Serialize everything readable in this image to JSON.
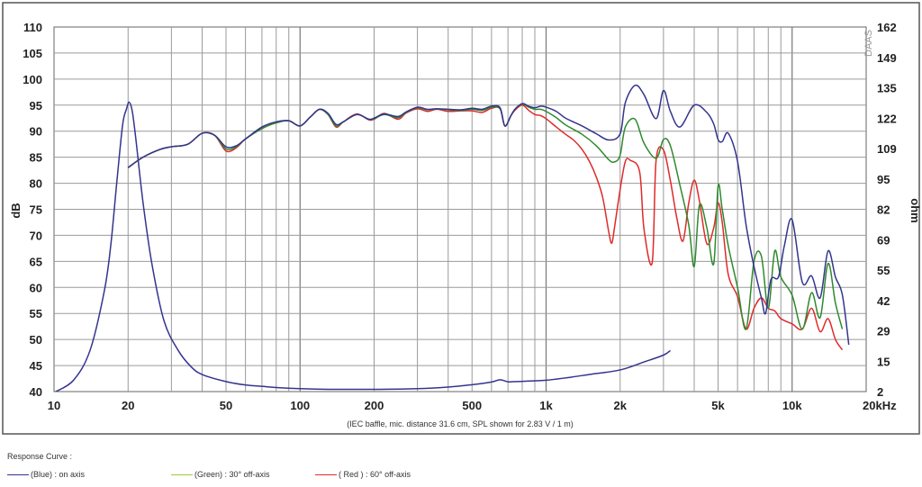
{
  "chart_data": {
    "type": "line",
    "title": "",
    "ylabel": "dB",
    "y2label": "ohm",
    "xlabel": "",
    "note": "(IEC baffle, mic. distance 31.6 cm, SPL shown for 2.83 V / 1 m)",
    "watermark": "DAAS",
    "x_scale": "log",
    "xlim": [
      10,
      20000
    ],
    "ylim": [
      40,
      110
    ],
    "y2_ticks": [
      "2",
      "15",
      "29",
      "42",
      "55",
      "69",
      "82",
      "95",
      "109",
      "122",
      "135",
      "149",
      "162"
    ],
    "y_ticks": [
      "40",
      "45",
      "50",
      "55",
      "60",
      "65",
      "70",
      "75",
      "80",
      "85",
      "90",
      "95",
      "100",
      "105",
      "110"
    ],
    "x_tick_labels": [
      {
        "value": 10,
        "label": "10"
      },
      {
        "value": 20,
        "label": "20"
      },
      {
        "value": 50,
        "label": "50"
      },
      {
        "value": 100,
        "label": "100"
      },
      {
        "value": 200,
        "label": "200"
      },
      {
        "value": 500,
        "label": "500"
      },
      {
        "value": 1000,
        "label": "1k"
      },
      {
        "value": 2000,
        "label": "2k"
      },
      {
        "value": 5000,
        "label": "5k"
      },
      {
        "value": 10000,
        "label": "10k"
      },
      {
        "value": 20000,
        "label": "20kHz"
      }
    ],
    "grid": true,
    "legend_position": "bottom",
    "series": [
      {
        "name": "on axis",
        "color": "#34348f",
        "x": [
          20,
          23,
          27,
          30,
          35,
          40,
          45,
          50,
          55,
          60,
          70,
          80,
          90,
          100,
          110,
          120,
          130,
          140,
          150,
          170,
          190,
          200,
          220,
          250,
          270,
          300,
          330,
          360,
          400,
          450,
          500,
          550,
          600,
          650,
          680,
          720,
          750,
          800,
          850,
          900,
          950,
          1000,
          1100,
          1200,
          1400,
          1600,
          1800,
          2000,
          2100,
          2300,
          2500,
          2800,
          3000,
          3200,
          3500,
          4000,
          4500,
          4800,
          5000,
          5200,
          5500,
          6000,
          6500,
          7000,
          7500,
          7800,
          8200,
          8800,
          9300,
          10000,
          11000,
          12000,
          13000,
          14000,
          15000,
          16000,
          17000
        ],
        "y": [
          83,
          85,
          86.5,
          87,
          87.5,
          89.6,
          89.2,
          87,
          87.2,
          88.5,
          90.8,
          91.8,
          92,
          91,
          92.7,
          94.2,
          93.4,
          91.3,
          91.8,
          93.2,
          92.3,
          92.5,
          93.3,
          92.8,
          93.7,
          94.6,
          94.2,
          94.3,
          94.2,
          94.1,
          94.4,
          94.2,
          94.8,
          94.5,
          91,
          93,
          94.3,
          95.3,
          94.8,
          94.5,
          94.8,
          94.6,
          93.8,
          92.5,
          91,
          89.5,
          88.3,
          89.5,
          95.5,
          98.8,
          97,
          92.4,
          97.8,
          93.8,
          90.8,
          95,
          93.6,
          91.4,
          88.4,
          88,
          89.6,
          84.2,
          72,
          64,
          58,
          55,
          61.5,
          62,
          68,
          73,
          61,
          62.2,
          58,
          67,
          62,
          58.6,
          49
        ]
      },
      {
        "name": "30° off-axis",
        "color": "#2e8a2e",
        "x": [
          20,
          23,
          27,
          30,
          35,
          40,
          45,
          50,
          55,
          60,
          70,
          80,
          90,
          100,
          110,
          120,
          130,
          140,
          150,
          170,
          190,
          200,
          220,
          250,
          270,
          300,
          330,
          360,
          400,
          450,
          500,
          550,
          600,
          650,
          680,
          720,
          750,
          800,
          850,
          900,
          950,
          1000,
          1100,
          1200,
          1400,
          1600,
          1800,
          1900,
          2000,
          2100,
          2300,
          2500,
          2800,
          3000,
          3200,
          3500,
          3800,
          4000,
          4200,
          4500,
          4800,
          5000,
          5200,
          5500,
          6000,
          6500,
          7000,
          7500,
          8000,
          8500,
          9000,
          10000,
          11000,
          12000,
          13000,
          14000,
          15000,
          16000
        ],
        "y": [
          83,
          85,
          86.5,
          87,
          87.5,
          89.6,
          89.2,
          86.6,
          87,
          88.5,
          90.5,
          91.6,
          92,
          91,
          92.7,
          94.2,
          93.2,
          91,
          91.8,
          93.2,
          92.3,
          92.4,
          93.2,
          92.6,
          93.6,
          94.5,
          94.1,
          94.3,
          94.1,
          94,
          94.2,
          94,
          94.6,
          94.3,
          91,
          93,
          94.3,
          95.2,
          94.6,
          94.2,
          94.2,
          93.8,
          92.6,
          91.2,
          89.4,
          87.2,
          84.5,
          84.1,
          85.4,
          90.8,
          92.3,
          87.7,
          84.8,
          88.4,
          87.2,
          79.6,
          72,
          64,
          75.8,
          71.5,
          64.5,
          79.4,
          75,
          68,
          60,
          52,
          65,
          66,
          56,
          67,
          62,
          58.5,
          52,
          59,
          54.2,
          64.6,
          57,
          52
        ]
      },
      {
        "name": "60° off-axis",
        "color": "#e02a2a",
        "x": [
          20,
          23,
          27,
          30,
          35,
          40,
          45,
          50,
          55,
          60,
          70,
          80,
          90,
          100,
          110,
          120,
          130,
          140,
          150,
          170,
          190,
          200,
          220,
          250,
          270,
          300,
          330,
          360,
          400,
          450,
          500,
          550,
          600,
          650,
          680,
          720,
          750,
          800,
          850,
          900,
          950,
          1000,
          1100,
          1200,
          1300,
          1400,
          1500,
          1600,
          1700,
          1800,
          1850,
          1900,
          2000,
          2100,
          2200,
          2400,
          2500,
          2700,
          2800,
          3000,
          3200,
          3400,
          3600,
          3800,
          4000,
          4200,
          4500,
          4800,
          5000,
          5200,
          5500,
          6000,
          6500,
          7000,
          7500,
          8000,
          8500,
          9000,
          10000,
          11000,
          12000,
          13000,
          14000,
          15000,
          16000
        ],
        "y": [
          83,
          85,
          86.5,
          87,
          87.5,
          89.6,
          89.2,
          86.2,
          86.8,
          88.5,
          90.5,
          91.6,
          92,
          91,
          92.7,
          94.2,
          93.2,
          90.8,
          91.8,
          93.3,
          92.2,
          92.3,
          93.4,
          92.3,
          93.5,
          94.3,
          93.8,
          94.2,
          93.8,
          93.9,
          93.9,
          93.6,
          94.4,
          94.3,
          91,
          93,
          94.1,
          95,
          94,
          93.2,
          93,
          92.4,
          90.8,
          89.4,
          88.2,
          86.5,
          84.2,
          81.2,
          77.2,
          70.5,
          68.5,
          71.7,
          78.8,
          84.2,
          84.4,
          82.2,
          71.2,
          64.8,
          84.4,
          86.4,
          80.5,
          73.3,
          68.9,
          76.2,
          80.6,
          76.6,
          68.4,
          71.4,
          76.2,
          72.5,
          62.5,
          58.2,
          52,
          56,
          58,
          56,
          55.5,
          54,
          53,
          52,
          56,
          51.5,
          54,
          50,
          48
        ]
      }
    ],
    "impedance": {
      "name": "impedance",
      "color": "#34348f",
      "x": [
        10,
        12,
        14,
        16,
        17,
        18,
        19,
        19.7,
        20.2,
        20.8,
        21.5,
        23,
        25,
        28,
        32,
        36,
        40,
        50,
        60,
        70,
        80,
        100,
        130,
        200,
        300,
        400,
        500,
        600,
        650,
        700,
        750,
        800,
        1000,
        1200,
        1500,
        2000,
        2500,
        3000,
        3200
      ],
      "y": [
        1.6,
        7,
        20,
        46,
        66,
        94,
        119,
        126,
        129,
        125,
        113,
        85,
        58,
        33,
        20,
        13,
        9.5,
        6.4,
        4.9,
        4.3,
        3.8,
        3.3,
        3,
        3,
        3.3,
        4,
        5,
        6.2,
        7.2,
        6.3,
        6.4,
        6.5,
        7,
        8,
        9.5,
        11.5,
        15,
        18,
        20
      ],
      "ylim": [
        2,
        162
      ]
    }
  },
  "legend": {
    "title": "Response Curve :",
    "items": [
      {
        "label": "(Blue)  : on axis",
        "color": "#34348f"
      },
      {
        "label": "(Green) : 30° off-axis",
        "color": "#9acd32"
      },
      {
        "label": "( Red ) : 60° off-axis",
        "color": "#e02a2a"
      }
    ]
  }
}
